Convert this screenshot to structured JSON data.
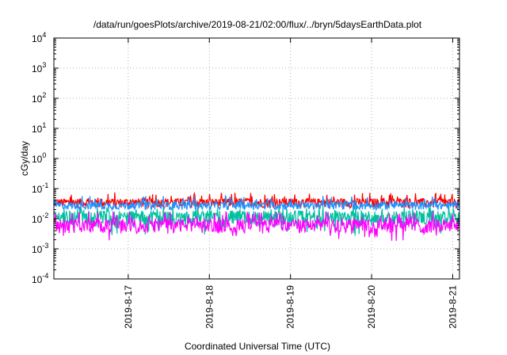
{
  "chart_data": {
    "type": "line",
    "title": "/data/run/goesPlots/archive/2019-08-21/02:00/flux/../bryn/5daysEarthData.plot",
    "xlabel": "Coordinated Universal Time (UTC)",
    "ylabel": "cGy/day",
    "yscale": "log",
    "ylim": [
      0.0001,
      10000
    ],
    "xlim": [
      "2019-08-16T02:00",
      "2019-08-21T02:00"
    ],
    "grid": true,
    "y_ticks": [
      {
        "base": "10",
        "exp": "-4",
        "value": 0.0001
      },
      {
        "base": "10",
        "exp": "-3",
        "value": 0.001
      },
      {
        "base": "10",
        "exp": "-2",
        "value": 0.01
      },
      {
        "base": "10",
        "exp": "-1",
        "value": 0.1
      },
      {
        "base": "10",
        "exp": "0",
        "value": 1
      },
      {
        "base": "10",
        "exp": "1",
        "value": 10
      },
      {
        "base": "10",
        "exp": "2",
        "value": 100
      },
      {
        "base": "10",
        "exp": "3",
        "value": 1000
      },
      {
        "base": "10",
        "exp": "4",
        "value": 10000
      }
    ],
    "x_ticks": [
      {
        "label": "2019-8-17",
        "value": "2019-08-17T00:00"
      },
      {
        "label": "2019-8-18",
        "value": "2019-08-18T00:00"
      },
      {
        "label": "2019-8-19",
        "value": "2019-08-19T00:00"
      },
      {
        "label": "2019-8-20",
        "value": "2019-08-20T00:00"
      },
      {
        "label": "2019-8-21",
        "value": "2019-08-21T00:00"
      }
    ],
    "series": [
      {
        "color": "#ff0000",
        "base": 0.035,
        "spread": 0.35,
        "values": []
      },
      {
        "color": "#00c0a0",
        "base": 0.012,
        "spread": 0.55,
        "values": []
      },
      {
        "color": "#1e90ff",
        "base": 0.028,
        "spread": 0.3,
        "values": []
      },
      {
        "color": "#ff00ff",
        "base": 0.0065,
        "spread": 0.5,
        "values": []
      }
    ]
  }
}
